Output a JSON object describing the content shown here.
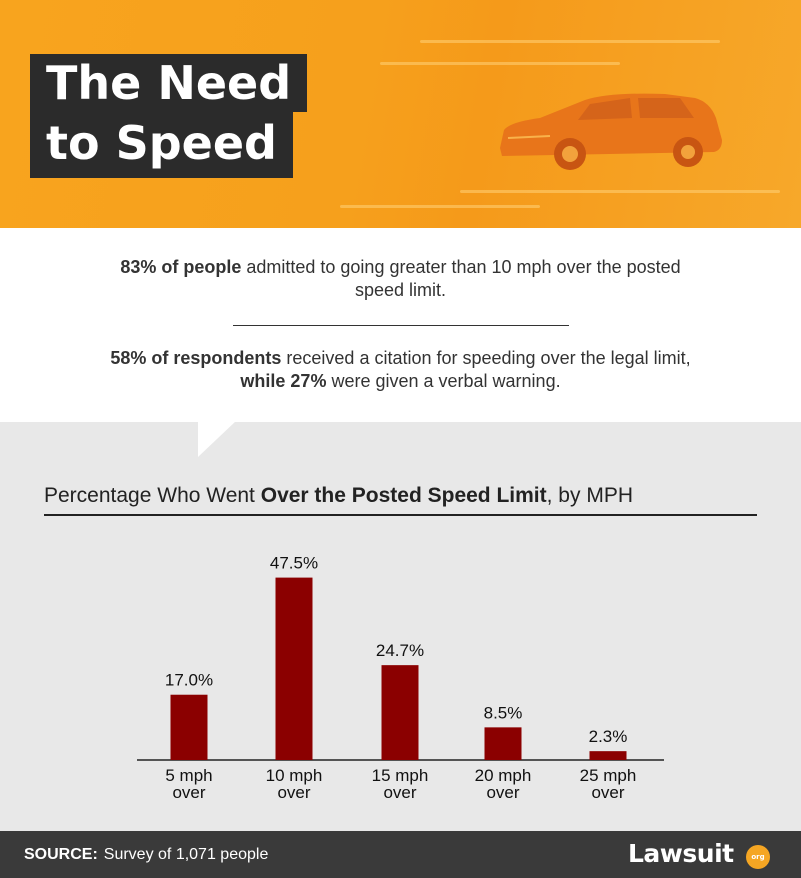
{
  "header": {
    "title_line1": "The Need",
    "title_line2": "to Speed",
    "background_color": "#f7a21e",
    "title_box_color": "#2b2b2b"
  },
  "stats": {
    "stat1": {
      "bold": "83% of people",
      "text": " admitted to going greater than 10 mph over the posted speed limit."
    },
    "stat2": {
      "bold1": "58% of respondents",
      "text1": " received a citation for speeding over the legal limit, ",
      "bold2": "while 27%",
      "text2": " were given a verbal warning."
    }
  },
  "chart_data": {
    "type": "bar",
    "title_prefix": "Percentage Who Went ",
    "title_bold": "Over the Posted Speed Limit",
    "title_suffix": ", by MPH",
    "categories": [
      [
        "5 mph",
        "over"
      ],
      [
        "10 mph",
        "over"
      ],
      [
        "15 mph",
        "over"
      ],
      [
        "20 mph",
        "over"
      ],
      [
        "25 mph",
        "over"
      ]
    ],
    "values": [
      17.0,
      47.5,
      24.7,
      8.5,
      2.3
    ],
    "value_labels": [
      "17.0%",
      "47.5%",
      "24.7%",
      "8.5%",
      "2.3%"
    ],
    "ylim": [
      0,
      50
    ],
    "bar_color": "#8b0000",
    "grid": false
  },
  "footer": {
    "source_label": "SOURCE:",
    "source_text": "Survey of 1,071 people",
    "logo_text": "Lawsuit",
    "logo_badge": "org"
  }
}
